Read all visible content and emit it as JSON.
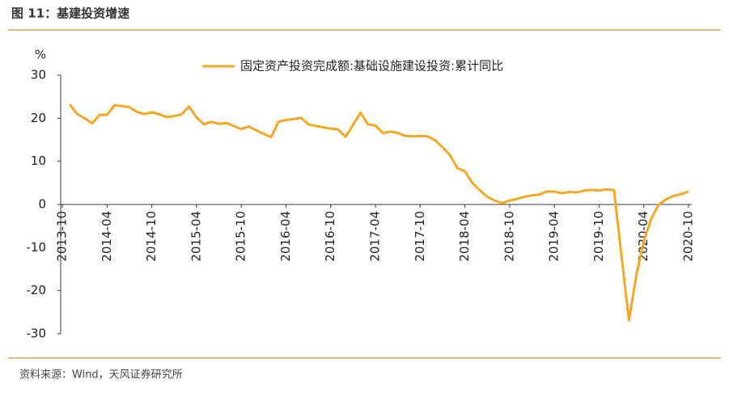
{
  "header": {
    "title": "图 11：基建投资增速"
  },
  "chart_data": {
    "type": "line",
    "y_unit": "%",
    "categories": [
      "2013-10",
      null,
      null,
      null,
      null,
      null,
      "2014-04",
      null,
      null,
      null,
      null,
      null,
      "2014-10",
      null,
      null,
      null,
      null,
      null,
      "2015-04",
      null,
      null,
      null,
      null,
      null,
      "2015-10",
      null,
      null,
      null,
      null,
      null,
      "2016-04",
      null,
      null,
      null,
      null,
      null,
      "2016-10",
      null,
      null,
      null,
      null,
      null,
      "2017-04",
      null,
      null,
      null,
      null,
      null,
      "2017-10",
      null,
      null,
      null,
      null,
      null,
      "2018-04",
      null,
      null,
      null,
      null,
      null,
      "2018-10",
      null,
      null,
      null,
      null,
      null,
      "2019-04",
      null,
      null,
      null,
      null,
      null,
      "2019-10",
      null,
      null,
      null,
      null,
      null,
      "2020-04",
      null,
      null,
      null,
      null,
      null,
      "2020-10"
    ],
    "series": [
      {
        "name": "固定资产投资完成额:基础设施建设投资:累计同比",
        "color": "#f5a623",
        "values": [
          null,
          23.2,
          21,
          20,
          18.8,
          20.8,
          20.8,
          23,
          22.8,
          22.6,
          21.5,
          21,
          21.4,
          20.9,
          20.3,
          20.5,
          20.9,
          22.7,
          20.2,
          18.6,
          19.2,
          18.7,
          18.9,
          18.2,
          17.5,
          18.1,
          17.2,
          16.4,
          15.6,
          19.2,
          19.6,
          19.8,
          20.1,
          18.6,
          18.2,
          17.9,
          17.6,
          17.4,
          15.7,
          18.5,
          21.3,
          18.6,
          18.3,
          16.6,
          16.9,
          16.6,
          15.9,
          15.8,
          15.9,
          15.8,
          14.9,
          13.3,
          11.5,
          8.4,
          7.7,
          5,
          3.3,
          1.8,
          0.9,
          0.3,
          0.9,
          1.3,
          1.8,
          2.1,
          2.3,
          3,
          3,
          2.6,
          2.9,
          2.8,
          3.2,
          3.4,
          3.2,
          3.5,
          3.3,
          -11.8,
          -26.9,
          -16.4,
          -8.5,
          -3.3,
          -0.1,
          1.2,
          2,
          2.4,
          3
        ]
      }
    ],
    "ylim": [
      -30,
      30
    ],
    "yticks": [
      -30,
      -20,
      -10,
      0,
      10,
      20,
      30
    ],
    "legend": "top"
  },
  "footer": {
    "source": "资料来源：Wind，天风证券研究所"
  }
}
